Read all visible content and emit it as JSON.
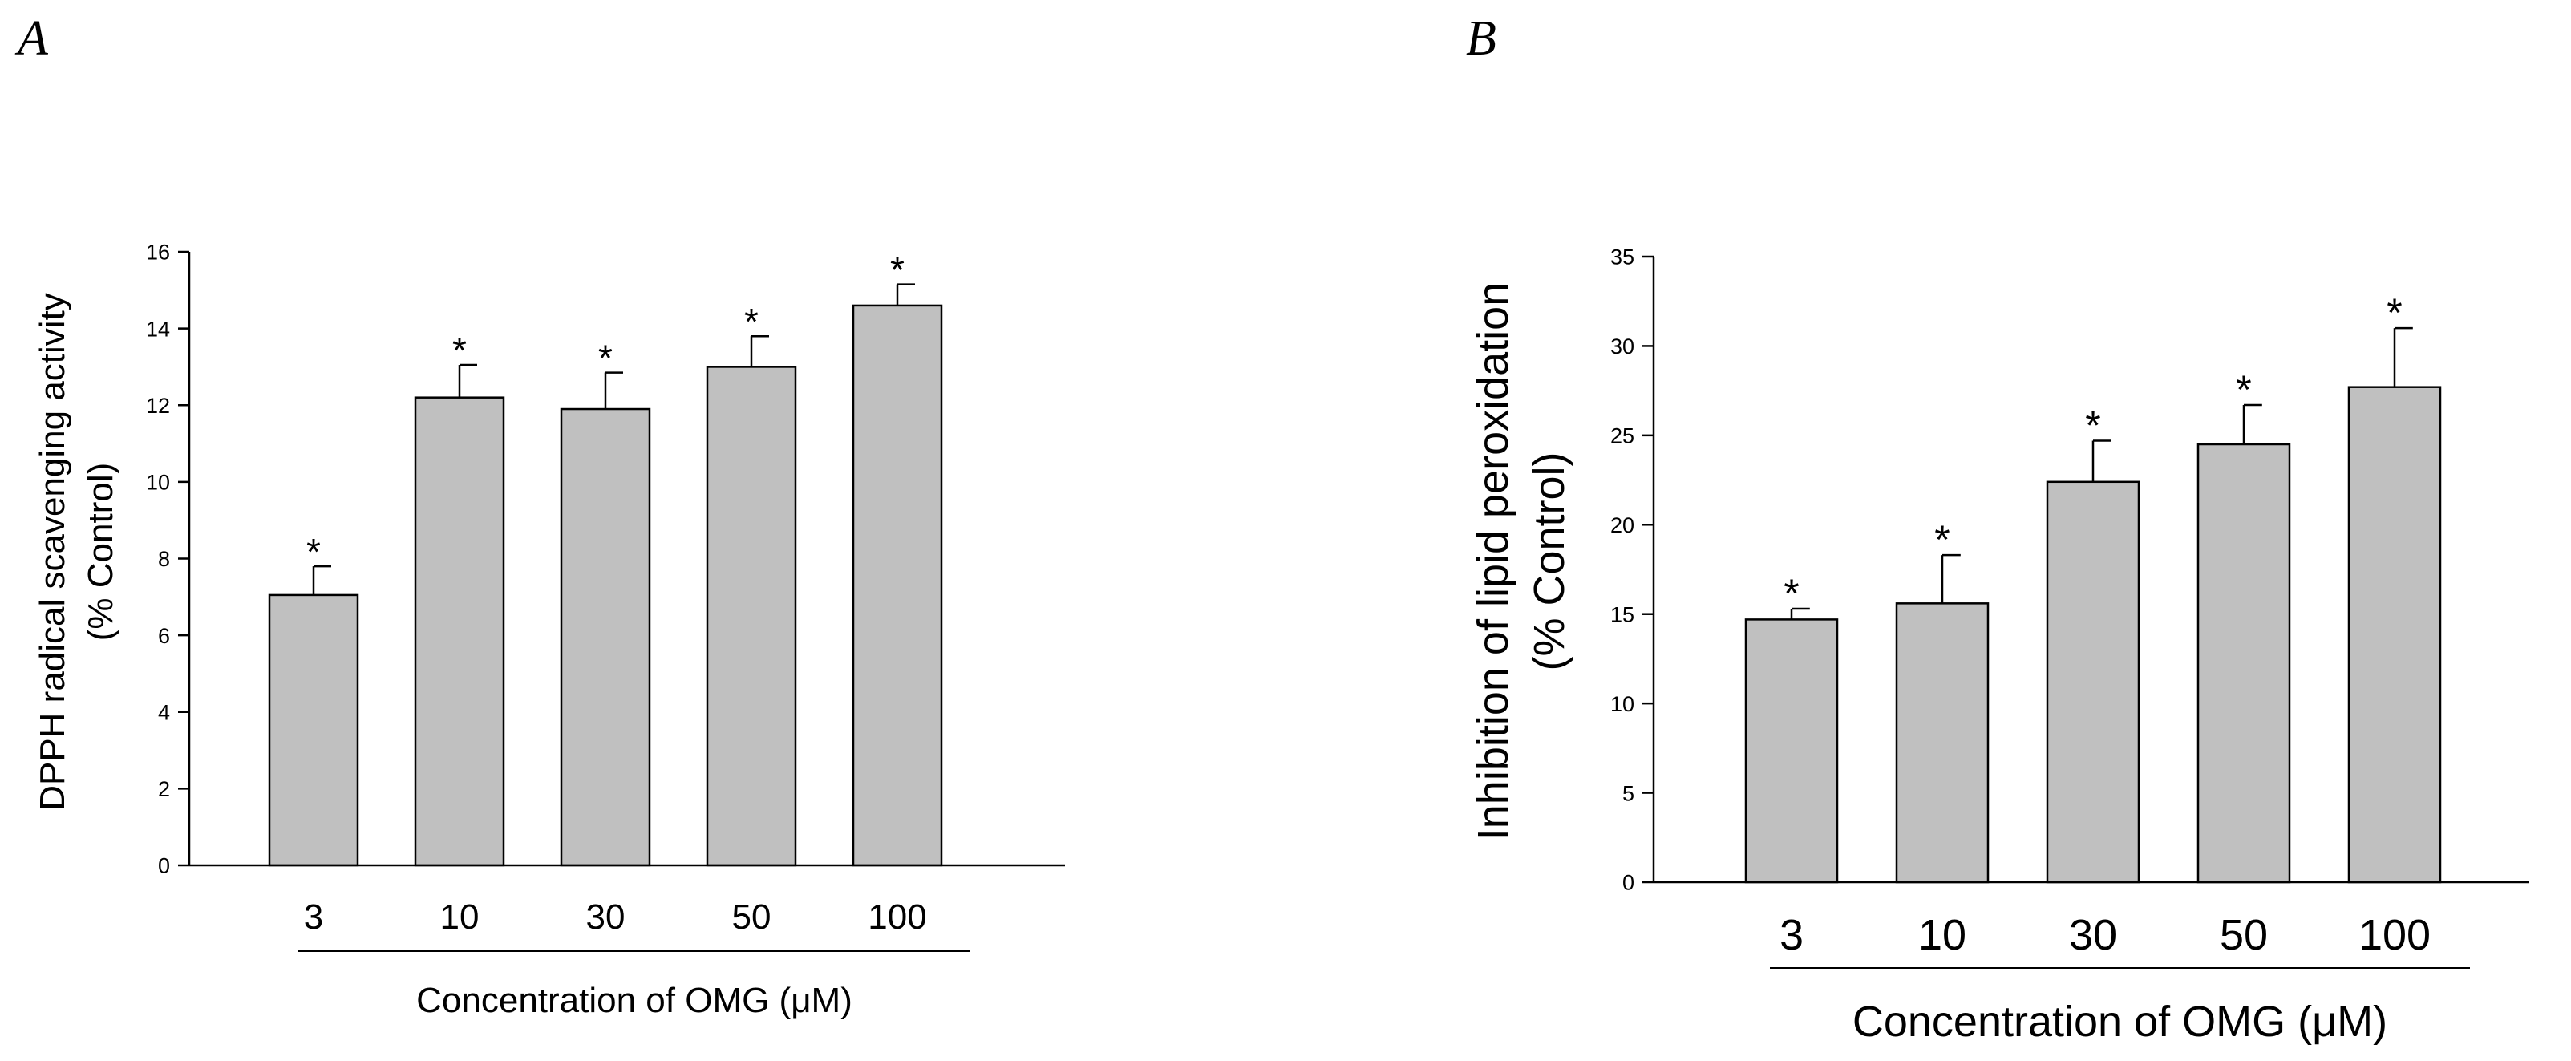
{
  "colors": {
    "bar_fill": "#c0c0c0",
    "stroke": "#000000",
    "background": "#ffffff"
  },
  "chart_data": [
    {
      "panel": "A",
      "type": "bar",
      "categories": [
        "3",
        "10",
        "30",
        "50",
        "100"
      ],
      "values": [
        7.05,
        12.2,
        11.9,
        13.0,
        14.6
      ],
      "errors": [
        0.75,
        0.85,
        0.95,
        0.8,
        0.55
      ],
      "significance": [
        "*",
        "*",
        "*",
        "*",
        "*"
      ],
      "title": "",
      "xlabel": "Concentration of OMG (μM)",
      "ylabel_line1": "DPPH radical scavenging activity",
      "ylabel_line2": "(% Control)",
      "ylim": [
        0,
        16
      ],
      "yticks": [
        "0",
        "2",
        "4",
        "6",
        "8",
        "10",
        "12",
        "14",
        "16"
      ]
    },
    {
      "panel": "B",
      "type": "bar",
      "categories": [
        "3",
        "10",
        "30",
        "50",
        "100"
      ],
      "values": [
        14.7,
        15.6,
        22.4,
        24.5,
        27.7
      ],
      "errors": [
        0.6,
        2.7,
        2.3,
        2.2,
        3.3
      ],
      "significance": [
        "*",
        "*",
        "*",
        "*",
        "*"
      ],
      "title": "",
      "xlabel": "Concentration of OMG (μM)",
      "ylabel_line1": "Inhibition of lipid peroxidation",
      "ylabel_line2": "(% Control)",
      "ylim": [
        0,
        35
      ],
      "yticks": [
        "0",
        "5",
        "10",
        "15",
        "20",
        "25",
        "30",
        "35"
      ]
    }
  ]
}
